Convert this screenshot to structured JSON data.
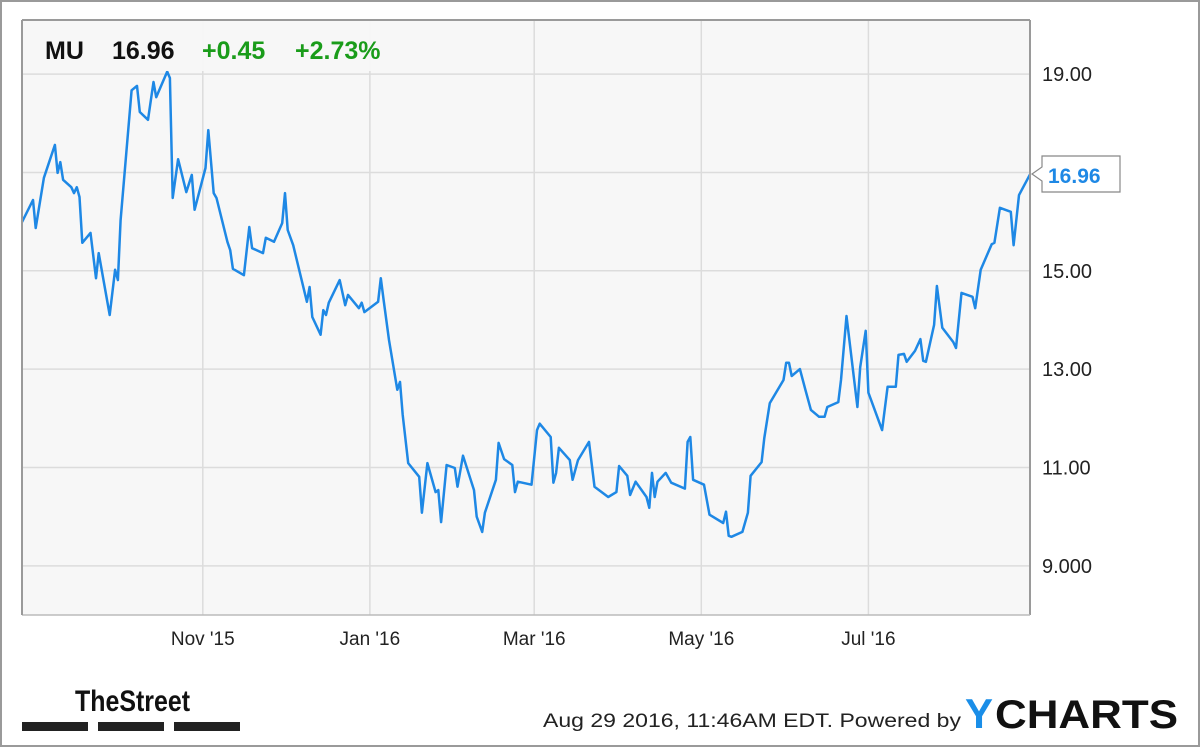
{
  "header": {
    "ticker": "MU",
    "price": "16.96",
    "change": "+0.45",
    "change_pct": "+2.73%"
  },
  "last_value_label": "16.96",
  "footer": {
    "timestamp": "Aug 29 2016, 11:46AM EDT. Powered by",
    "brand_left": "TheStreet",
    "brand_right_y": "Y",
    "brand_right_rest": "CHARTS"
  },
  "colors": {
    "line": "#1e88e5",
    "positive": "#1a9c1a",
    "plot_bg": "#f7f7f7",
    "grid": "#dcdcdc",
    "ycharts_y": "#1a8ee8"
  },
  "chart_data": {
    "type": "line",
    "title": "",
    "xlabel": "",
    "ylabel": "",
    "xlim": [
      "2015-08-27",
      "2016-08-29"
    ],
    "ylim": [
      8.0,
      20.1
    ],
    "grid": true,
    "y_axis_side": "right",
    "y_ticks": [
      9,
      11,
      13,
      15,
      17,
      19
    ],
    "y_tick_labels": [
      "9.000",
      "11.00",
      "13.00",
      "15.00",
      "",
      "19.00"
    ],
    "x_ticks": [
      "2015-11-01",
      "2016-01-01",
      "2016-03-01",
      "2016-05-01",
      "2016-07-01"
    ],
    "x_tick_labels": [
      "Nov '15",
      "Jan '16",
      "Mar '16",
      "May '16",
      "Jul '16"
    ],
    "series": [
      {
        "x": [
          "2015-08-27",
          "2015-08-31",
          "2015-09-01",
          "2015-09-04",
          "2015-09-08",
          "2015-09-09",
          "2015-09-10",
          "2015-09-11",
          "2015-09-14",
          "2015-09-15",
          "2015-09-16",
          "2015-09-17",
          "2015-09-18",
          "2015-09-21",
          "2015-09-23",
          "2015-09-24",
          "2015-09-28",
          "2015-09-30",
          "2015-10-01",
          "2015-10-02",
          "2015-10-06",
          "2015-10-08",
          "2015-10-09",
          "2015-10-12",
          "2015-10-14",
          "2015-10-15",
          "2015-10-19",
          "2015-10-20",
          "2015-10-21",
          "2015-10-23",
          "2015-10-26",
          "2015-10-28",
          "2015-10-29",
          "2015-11-02",
          "2015-11-03",
          "2015-11-05",
          "2015-11-06",
          "2015-11-10",
          "2015-11-11",
          "2015-11-12",
          "2015-11-16",
          "2015-11-18",
          "2015-11-19",
          "2015-11-23",
          "2015-11-24",
          "2015-11-27",
          "2015-11-30",
          "2015-12-01",
          "2015-12-02",
          "2015-12-04",
          "2015-12-09",
          "2015-12-10",
          "2015-12-11",
          "2015-12-14",
          "2015-12-15",
          "2015-12-16",
          "2015-12-17",
          "2015-12-21",
          "2015-12-23",
          "2015-12-24",
          "2015-12-28",
          "2015-12-29",
          "2015-12-30",
          "2016-01-04",
          "2016-01-05",
          "2016-01-06",
          "2016-01-08",
          "2016-01-11",
          "2016-01-12",
          "2016-01-13",
          "2016-01-15",
          "2016-01-19",
          "2016-01-20",
          "2016-01-22",
          "2016-01-25",
          "2016-01-26",
          "2016-01-27",
          "2016-01-29",
          "2016-02-01",
          "2016-02-02",
          "2016-02-04",
          "2016-02-08",
          "2016-02-09",
          "2016-02-11",
          "2016-02-12",
          "2016-02-16",
          "2016-02-17",
          "2016-02-19",
          "2016-02-22",
          "2016-02-23",
          "2016-02-24",
          "2016-02-29",
          "2016-03-02",
          "2016-03-03",
          "2016-03-07",
          "2016-03-08",
          "2016-03-09",
          "2016-03-10",
          "2016-03-14",
          "2016-03-15",
          "2016-03-17",
          "2016-03-21",
          "2016-03-23",
          "2016-03-28",
          "2016-03-31",
          "2016-04-01",
          "2016-04-04",
          "2016-04-05",
          "2016-04-07",
          "2016-04-11",
          "2016-04-12",
          "2016-04-13",
          "2016-04-14",
          "2016-04-15",
          "2016-04-18",
          "2016-04-20",
          "2016-04-25",
          "2016-04-26",
          "2016-04-27",
          "2016-04-28",
          "2016-05-02",
          "2016-05-04",
          "2016-05-09",
          "2016-05-10",
          "2016-05-11",
          "2016-05-12",
          "2016-05-16",
          "2016-05-18",
          "2016-05-19",
          "2016-05-23",
          "2016-05-24",
          "2016-05-26",
          "2016-05-31",
          "2016-06-01",
          "2016-06-02",
          "2016-06-03",
          "2016-06-06",
          "2016-06-08",
          "2016-06-10",
          "2016-06-13",
          "2016-06-15",
          "2016-06-16",
          "2016-06-20",
          "2016-06-21",
          "2016-06-23",
          "2016-06-27",
          "2016-06-28",
          "2016-06-30",
          "2016-07-01",
          "2016-07-06",
          "2016-07-08",
          "2016-07-11",
          "2016-07-12",
          "2016-07-14",
          "2016-07-15",
          "2016-07-18",
          "2016-07-20",
          "2016-07-21",
          "2016-07-22",
          "2016-07-25",
          "2016-07-26",
          "2016-07-28",
          "2016-08-01",
          "2016-08-02",
          "2016-08-04",
          "2016-08-08",
          "2016-08-09",
          "2016-08-11",
          "2016-08-15",
          "2016-08-16",
          "2016-08-18",
          "2016-08-22",
          "2016-08-23",
          "2016-08-25",
          "2016-08-29"
        ],
        "values": [
          15.99,
          16.44,
          15.87,
          16.89,
          17.56,
          16.99,
          17.21,
          16.85,
          16.7,
          16.58,
          16.7,
          16.5,
          15.57,
          15.77,
          14.85,
          15.36,
          14.1,
          15.02,
          14.81,
          16.03,
          18.67,
          18.76,
          18.23,
          18.07,
          18.84,
          18.53,
          19.05,
          18.92,
          16.48,
          17.27,
          16.6,
          16.95,
          16.24,
          17.09,
          17.86,
          16.58,
          16.48,
          15.59,
          15.42,
          15.04,
          14.91,
          15.89,
          15.46,
          15.36,
          15.67,
          15.59,
          15.97,
          16.58,
          15.83,
          15.52,
          14.37,
          14.67,
          14.06,
          13.7,
          14.2,
          14.1,
          14.35,
          14.81,
          14.3,
          14.51,
          14.24,
          14.35,
          14.16,
          14.37,
          14.85,
          14.41,
          13.59,
          12.58,
          12.74,
          12.07,
          11.09,
          10.81,
          10.08,
          11.09,
          10.5,
          10.54,
          9.89,
          11.05,
          10.99,
          10.61,
          11.24,
          10.54,
          10.0,
          9.69,
          10.08,
          10.75,
          11.5,
          11.17,
          11.05,
          10.5,
          10.71,
          10.65,
          11.76,
          11.89,
          11.62,
          10.69,
          10.89,
          11.4,
          11.15,
          10.75,
          11.15,
          11.52,
          10.61,
          10.4,
          10.5,
          11.03,
          10.83,
          10.44,
          10.71,
          10.4,
          10.18,
          10.89,
          10.4,
          10.71,
          10.89,
          10.69,
          10.57,
          11.52,
          11.62,
          10.75,
          10.65,
          10.04,
          9.87,
          10.1,
          9.61,
          9.59,
          9.69,
          10.08,
          10.83,
          11.11,
          11.6,
          12.31,
          12.78,
          13.13,
          13.13,
          12.86,
          13.0,
          12.58,
          12.17,
          12.03,
          12.03,
          12.23,
          12.33,
          12.78,
          14.08,
          12.23,
          13.04,
          13.78,
          12.52,
          11.76,
          12.64,
          12.64,
          13.29,
          13.31,
          13.15,
          13.37,
          13.61,
          13.17,
          13.15,
          13.9,
          14.69,
          13.84,
          13.55,
          13.43,
          14.55,
          14.47,
          14.24,
          15.02,
          15.54,
          15.57,
          16.28,
          16.2,
          15.52,
          16.54,
          16.96
        ]
      }
    ]
  }
}
